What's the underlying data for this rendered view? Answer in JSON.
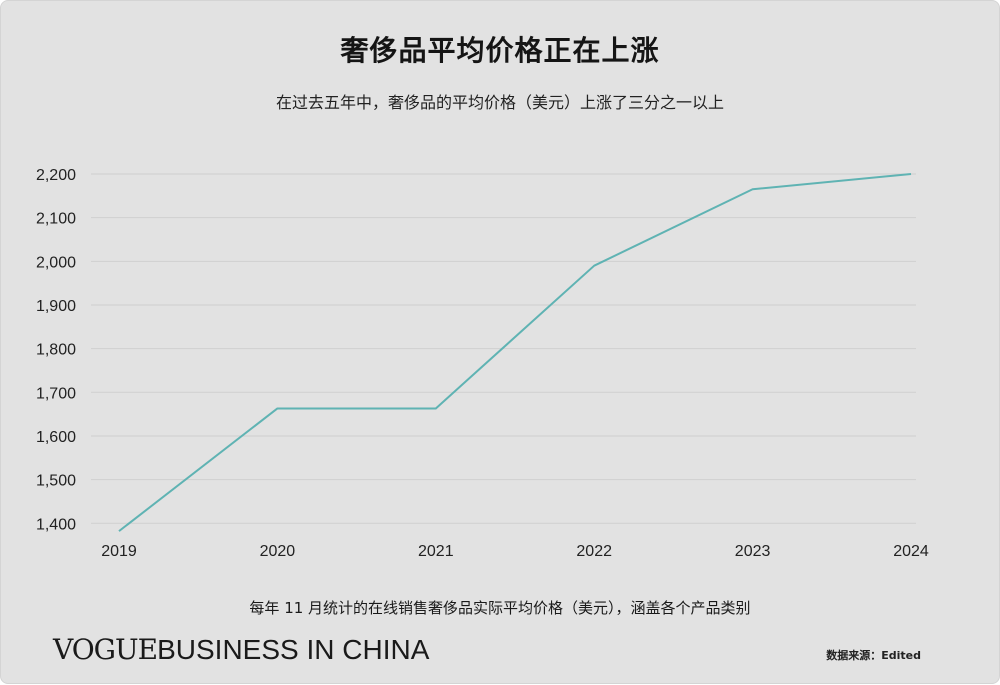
{
  "title": "奢侈品平均价格正在上涨",
  "subtitle": "在过去五年中，奢侈品的平均价格（美元）上涨了三分之一以上",
  "footnote": "每年 11 月统计的在线销售奢侈品实际平均价格（美元），涵盖各个产品类别",
  "source": "数据来源：Edited",
  "logo": {
    "vogue": "VOGUE",
    "business": "BUSINESS IN CHINA"
  },
  "chart_data": {
    "type": "line",
    "title": "奢侈品平均价格正在上涨",
    "subtitle": "在过去五年中，奢侈品的平均价格（美元）上涨了三分之一以上",
    "categories": [
      "2019",
      "2020",
      "2021",
      "2022",
      "2023",
      "2024"
    ],
    "series": [
      {
        "values": [
          1382,
          1663,
          1663,
          1990,
          2165,
          2200
        ]
      }
    ],
    "yticks": [
      1400,
      1500,
      1600,
      1700,
      1800,
      1900,
      2000,
      2100,
      2200
    ],
    "ytick_labels": [
      "1,400",
      "1,500",
      "1,600",
      "1,700",
      "1,800",
      "1,900",
      "2,000",
      "2,100",
      "2,200"
    ],
    "ylim": [
      1380,
      2200
    ],
    "grid": true,
    "legend": "none",
    "line_color": "#5fb3b3",
    "grid_color": "#cfcfcf"
  }
}
